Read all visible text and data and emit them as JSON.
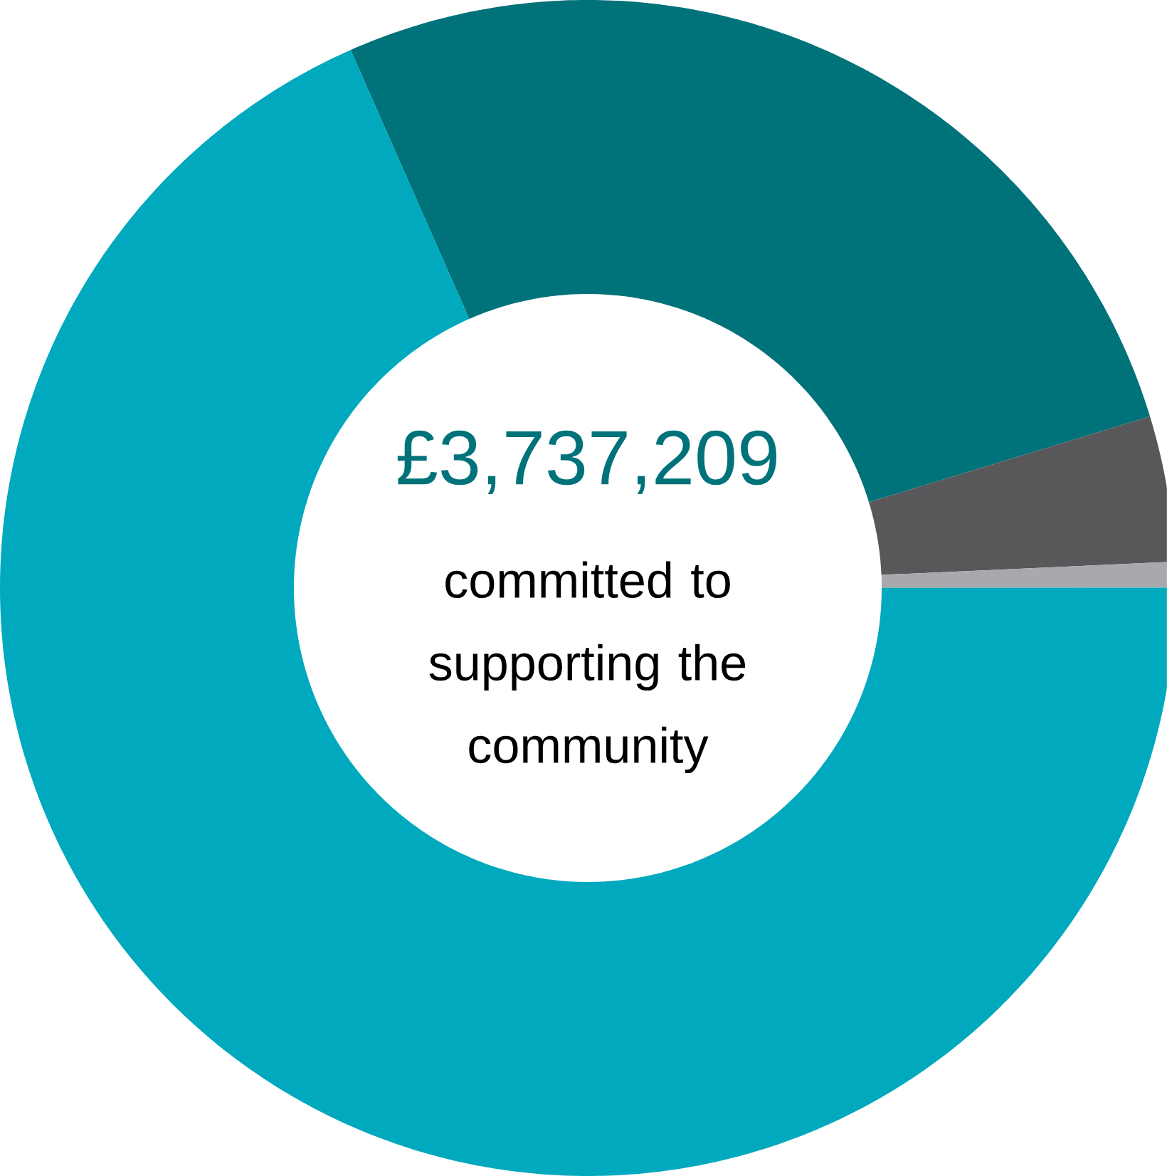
{
  "chart_data": {
    "type": "donut",
    "title": "£3,737,209",
    "subtitle": "committed to supporting the community",
    "categories": [
      null,
      null,
      null,
      null
    ],
    "values": [
      26.9,
      4.0,
      0.7,
      68.4
    ],
    "colors": [
      "#00727a",
      "#58585a",
      "#a7a9ac",
      "#00a9bd"
    ]
  }
}
